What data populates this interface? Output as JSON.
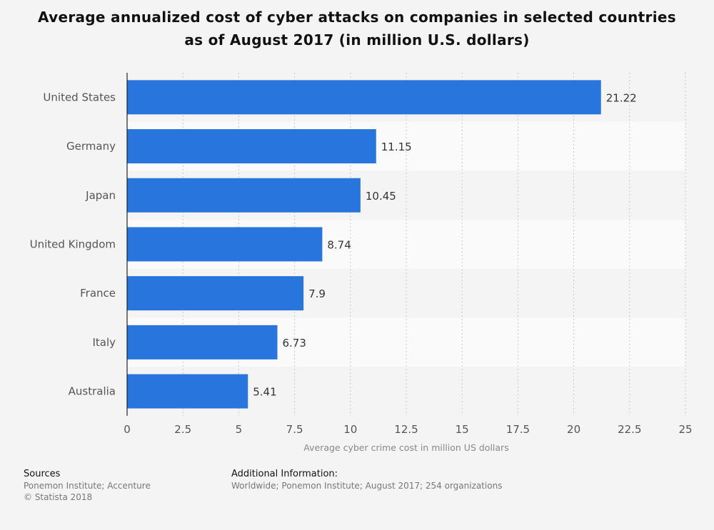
{
  "title": "Average annualized cost of cyber attacks on companies in selected countries as of August 2017 (in million U.S. dollars)",
  "chart_data": {
    "type": "bar",
    "orientation": "horizontal",
    "categories": [
      "United States",
      "Germany",
      "Japan",
      "United Kingdom",
      "France",
      "Italy",
      "Australia"
    ],
    "values": [
      21.22,
      11.15,
      10.45,
      8.74,
      7.9,
      6.73,
      5.41
    ],
    "value_labels": [
      "21.22",
      "11.15",
      "10.45",
      "8.74",
      "7.9",
      "6.73",
      "5.41"
    ],
    "xlabel": "Average cyber crime cost in million US dollars",
    "ylabel": "",
    "xlim": [
      0,
      25
    ],
    "xticks": [
      0,
      2.5,
      5,
      7.5,
      10,
      12.5,
      15,
      17.5,
      20,
      22.5,
      25
    ],
    "xtick_labels": [
      "0",
      "2.5",
      "5",
      "7.5",
      "10",
      "12.5",
      "15",
      "17.5",
      "20",
      "22.5",
      "25"
    ],
    "grid": true,
    "bar_color": "#2876dd"
  },
  "footer": {
    "sources_heading": "Sources",
    "sources_line1": "Ponemon Institute; Accenture",
    "sources_line2": "© Statista 2018",
    "additional_heading": "Additional Information:",
    "additional_text": "Worldwide; Ponemon Institute; August 2017; 254 organizations"
  }
}
